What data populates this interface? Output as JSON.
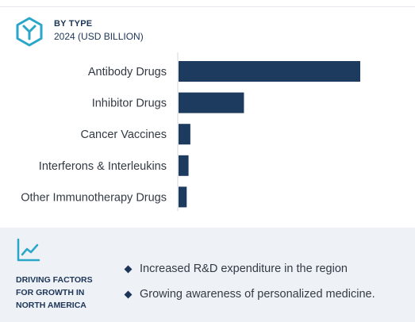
{
  "header": {
    "title": "BY TYPE",
    "subtitle": "2024 (USD BILLION)",
    "icon": "hexagon-y-logo-icon"
  },
  "colors": {
    "bar": "#1d3b5e",
    "accent": "#2aa6c8",
    "text": "#333a44",
    "panel_bg": "#eef2f6"
  },
  "chart_data": {
    "type": "bar",
    "orientation": "horizontal",
    "title": "BY TYPE",
    "subtitle": "2024 (USD BILLION)",
    "categories": [
      "Antibody Drugs",
      "Inhibitor Drugs",
      "Cancer Vaccines",
      "Interferons & Interleukins",
      "Other Immunotherapy Drugs"
    ],
    "values": [
      100,
      36,
      6.5,
      5.5,
      4.5
    ],
    "xlim": [
      0,
      100
    ],
    "axis_labels_shown": false,
    "grid": false
  },
  "factors": {
    "icon": "trend-line-icon",
    "title_lines": [
      "DRIVING FACTORS",
      "FOR GROWTH IN",
      "NORTH AMERICA"
    ],
    "items": [
      "Increased R&D expenditure in the region",
      "Growing awareness of personalized medicine."
    ]
  }
}
